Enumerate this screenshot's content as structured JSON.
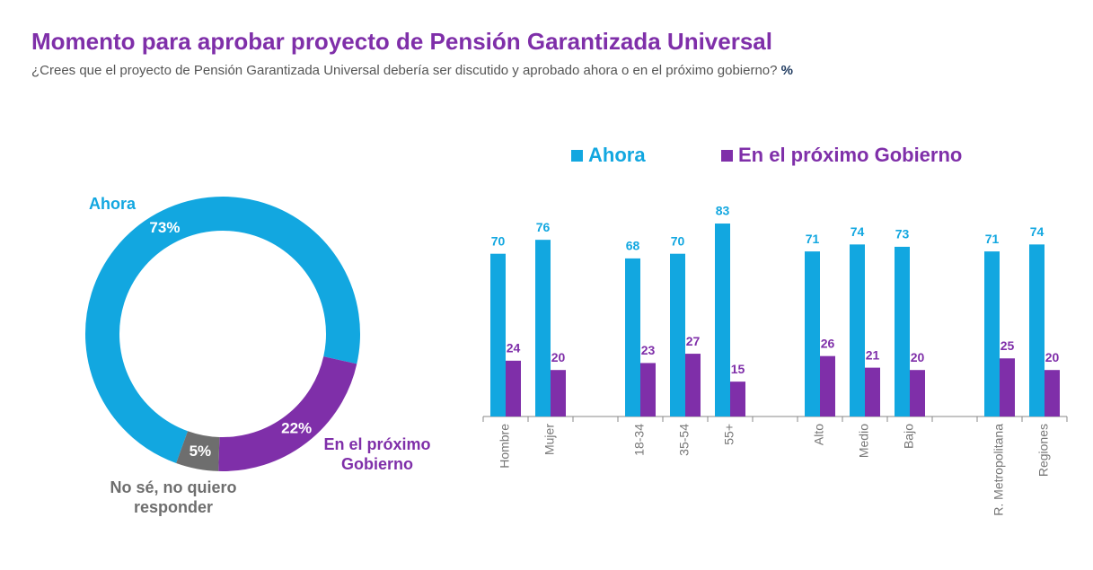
{
  "title": "Momento para aprobar proyecto de Pensión Garantizada Universal",
  "subtitle": "¿Crees que el proyecto de Pensión Garantizada Universal debería ser discutido y aprobado ahora o en el próximo gobierno?",
  "unit": "%",
  "chart_data": [
    {
      "type": "donut",
      "categories": [
        "Ahora",
        "En el próximo Gobierno",
        "No sé, no quiero responder"
      ],
      "values": [
        73,
        22,
        5
      ],
      "value_labels": [
        "73%",
        "22%",
        "5%"
      ],
      "colors": [
        "#12a7e0",
        "#7f2fa9",
        "#6e6e6e"
      ]
    },
    {
      "type": "bar",
      "categories": [
        "Hombre",
        "Mujer",
        null,
        "18-34",
        "35-54",
        "55+",
        null,
        "Alto",
        "Medio",
        "Bajo",
        null,
        "R. Metropolitana",
        "Regiones"
      ],
      "series": [
        {
          "name": "Ahora",
          "color": "#12a7e0",
          "values": [
            70,
            76,
            null,
            68,
            70,
            83,
            null,
            71,
            74,
            73,
            null,
            71,
            74
          ]
        },
        {
          "name": "En el próximo Gobierno",
          "color": "#7f2fa9",
          "values": [
            24,
            20,
            null,
            23,
            27,
            15,
            null,
            26,
            21,
            20,
            null,
            25,
            20
          ]
        }
      ],
      "ylim": [
        0,
        100
      ]
    }
  ]
}
